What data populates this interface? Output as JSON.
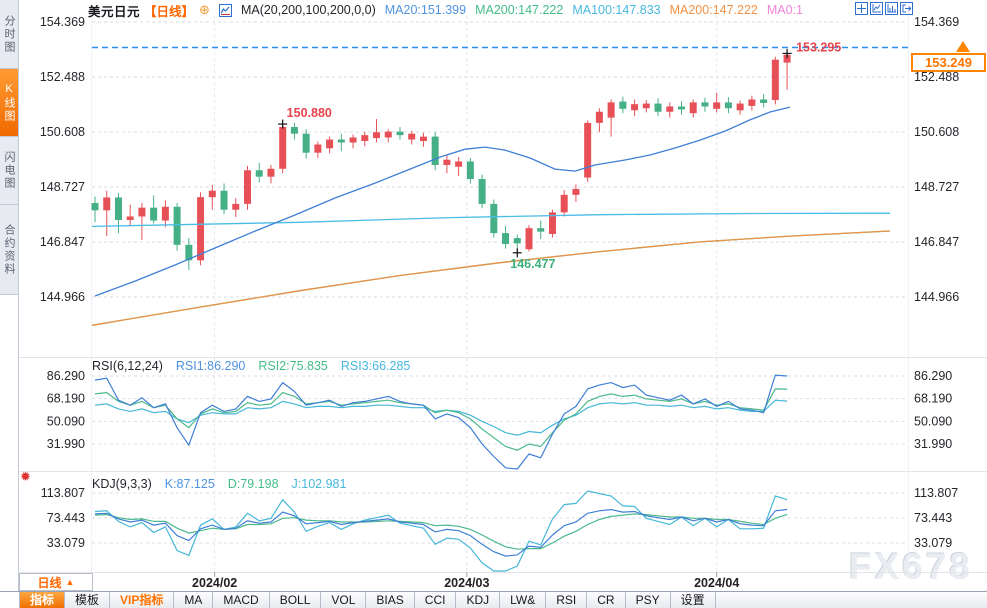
{
  "watermark": "FX678",
  "sidebar": {
    "tabs": [
      {
        "label": "分时图",
        "active": false
      },
      {
        "label": "K线图",
        "active": true
      },
      {
        "label": "闪电图",
        "active": false
      },
      {
        "label": "合约资料",
        "active": false
      }
    ]
  },
  "header": {
    "symbol": "美元日元",
    "period_tag": "【日线】",
    "add_icon": "⊕",
    "ma_formula": "MA(20,200,100,200,0,0)",
    "ma_values": [
      {
        "label": "MA20:151.399",
        "color": "#4f93e0"
      },
      {
        "label": "MA200:147.222",
        "color": "#43bd88"
      },
      {
        "label": "MA100:147.833",
        "color": "#47b8e0"
      },
      {
        "label": "MA200:147.222",
        "color": "#f09145"
      },
      {
        "label": "MA0:1",
        "color": "#ee86d8"
      }
    ]
  },
  "price_tag": {
    "value": "153.249",
    "color": "#ff8400"
  },
  "indicators": {
    "rsi": {
      "title": "RSI(6,12,24)",
      "items": [
        {
          "label": "RSI1:86.290",
          "color": "#4f93e0"
        },
        {
          "label": "RSI2:75.835",
          "color": "#43bd88"
        },
        {
          "label": "RSI3:66.285",
          "color": "#47b8e0"
        }
      ]
    },
    "kdj": {
      "title": "KDJ(9,3,3)",
      "items": [
        {
          "label": "K:87.125",
          "color": "#4f93e0"
        },
        {
          "label": "D:79.198",
          "color": "#43bd88"
        },
        {
          "label": "J:102.981",
          "color": "#47b8e0"
        }
      ]
    }
  },
  "period_selector": {
    "label": "日线",
    "arrow": "▲"
  },
  "toolbar": {
    "items": [
      {
        "label": "指标",
        "active": true
      },
      {
        "label": "模板"
      },
      {
        "label": "VIP指标",
        "vip": true
      },
      {
        "label": "MA"
      },
      {
        "label": "MACD"
      },
      {
        "label": "BOLL"
      },
      {
        "label": "VOL"
      },
      {
        "label": "BIAS"
      },
      {
        "label": "CCI"
      },
      {
        "label": "KDJ"
      },
      {
        "label": "LW&"
      },
      {
        "label": "RSI"
      },
      {
        "label": "CR"
      },
      {
        "label": "PSY"
      },
      {
        "label": "设置"
      }
    ]
  },
  "chart_data": {
    "type": "candlestick",
    "title": "美元日元 日线",
    "main": {
      "y_ticks": [
        154.369,
        152.488,
        150.608,
        148.727,
        146.847,
        144.966
      ],
      "x_ticks": [
        {
          "label": "2024/02",
          "i": 10.2
        },
        {
          "label": "2024/03",
          "i": 31.7
        },
        {
          "label": "2024/04",
          "i": 53.0
        }
      ],
      "up_color": "#e85058",
      "down_color": "#45b086",
      "last_price": 153.249,
      "price_line_color": "#2b8df0",
      "candles_ohlc": [
        [
          148.18,
          148.4,
          147.52,
          147.93
        ],
        [
          147.93,
          148.6,
          147.05,
          148.37
        ],
        [
          148.37,
          148.53,
          147.15,
          147.6
        ],
        [
          147.6,
          148.12,
          147.42,
          147.72
        ],
        [
          147.72,
          148.18,
          146.92,
          148.02
        ],
        [
          148.02,
          148.44,
          147.48,
          147.58
        ],
        [
          147.58,
          148.27,
          147.35,
          148.05
        ],
        [
          148.05,
          148.18,
          146.55,
          146.75
        ],
        [
          146.75,
          146.98,
          145.89,
          146.22
        ],
        [
          146.22,
          148.55,
          146.05,
          148.38
        ],
        [
          148.38,
          148.8,
          147.95,
          148.6
        ],
        [
          148.6,
          148.85,
          147.8,
          147.95
        ],
        [
          147.95,
          148.35,
          147.7,
          148.15
        ],
        [
          148.15,
          149.45,
          147.95,
          149.3
        ],
        [
          149.3,
          149.55,
          148.88,
          149.08
        ],
        [
          149.08,
          149.48,
          148.85,
          149.35
        ],
        [
          149.35,
          150.88,
          149.2,
          150.78
        ],
        [
          150.78,
          150.92,
          150.35,
          150.55
        ],
        [
          150.55,
          150.7,
          149.7,
          149.9
        ],
        [
          149.9,
          150.28,
          149.72,
          150.18
        ],
        [
          150.05,
          150.45,
          149.88,
          150.35
        ],
        [
          150.35,
          150.55,
          149.95,
          150.25
        ],
        [
          150.25,
          150.52,
          150.05,
          150.42
        ],
        [
          150.3,
          150.62,
          150.12,
          150.5
        ],
        [
          150.4,
          151.05,
          150.25,
          150.6
        ],
        [
          150.42,
          150.7,
          150.25,
          150.62
        ],
        [
          150.62,
          150.78,
          150.35,
          150.5
        ],
        [
          150.35,
          150.65,
          150.18,
          150.55
        ],
        [
          150.3,
          150.58,
          150.1,
          150.45
        ],
        [
          150.45,
          150.6,
          149.3,
          149.48
        ],
        [
          149.48,
          149.82,
          149.2,
          149.66
        ],
        [
          149.42,
          149.75,
          149.1,
          149.6
        ],
        [
          149.6,
          149.72,
          148.85,
          149.0
        ],
        [
          149.0,
          149.15,
          148.0,
          148.15
        ],
        [
          148.15,
          148.3,
          147.0,
          147.15
        ],
        [
          147.15,
          147.4,
          146.62,
          146.78
        ],
        [
          146.98,
          147.1,
          146.477,
          146.8
        ],
        [
          146.6,
          147.42,
          146.52,
          147.32
        ],
        [
          147.32,
          147.58,
          146.95,
          147.2
        ],
        [
          147.12,
          147.95,
          147.0,
          147.86
        ],
        [
          147.86,
          148.62,
          147.72,
          148.46
        ],
        [
          148.46,
          148.82,
          148.22,
          148.66
        ],
        [
          149.05,
          151.0,
          148.9,
          150.92
        ],
        [
          150.92,
          151.42,
          150.6,
          151.3
        ],
        [
          151.1,
          151.72,
          150.45,
          151.62
        ],
        [
          151.65,
          151.82,
          151.25,
          151.4
        ],
        [
          151.35,
          151.72,
          151.15,
          151.56
        ],
        [
          151.42,
          151.7,
          151.28,
          151.58
        ],
        [
          151.58,
          151.76,
          151.15,
          151.3
        ],
        [
          151.3,
          151.62,
          151.1,
          151.48
        ],
        [
          151.48,
          151.66,
          151.2,
          151.38
        ],
        [
          151.25,
          151.72,
          151.1,
          151.62
        ],
        [
          151.62,
          151.78,
          151.3,
          151.48
        ],
        [
          151.4,
          151.95,
          151.28,
          151.62
        ],
        [
          151.62,
          151.8,
          151.25,
          151.42
        ],
        [
          151.35,
          151.68,
          151.2,
          151.58
        ],
        [
          151.5,
          151.85,
          151.35,
          151.72
        ],
        [
          151.72,
          151.9,
          151.45,
          151.6
        ],
        [
          151.7,
          153.18,
          151.55,
          153.08
        ],
        [
          152.98,
          153.295,
          152.05,
          153.249
        ]
      ],
      "ma_lines": [
        {
          "name": "MA200-green",
          "color": "#43bd88",
          "points": [
            [
              92,
              144.0
            ],
            [
              200,
              144.62
            ],
            [
              300,
              145.18
            ],
            [
              400,
              145.7
            ],
            [
              500,
              146.14
            ],
            [
              600,
              146.52
            ],
            [
              700,
              146.85
            ],
            [
              790,
              147.05
            ],
            [
              890,
              147.222
            ]
          ]
        },
        {
          "name": "MA200-orange",
          "color": "#f09145",
          "points": [
            [
              92,
              144.0
            ],
            [
              200,
              144.62
            ],
            [
              300,
              145.18
            ],
            [
              400,
              145.7
            ],
            [
              500,
              146.14
            ],
            [
              600,
              146.52
            ],
            [
              700,
              146.85
            ],
            [
              790,
              147.05
            ],
            [
              890,
              147.222
            ]
          ]
        },
        {
          "name": "MA100",
          "color": "#49bde4",
          "points": [
            [
              92,
              147.38
            ],
            [
              300,
              147.52
            ],
            [
              450,
              147.68
            ],
            [
              600,
              147.78
            ],
            [
              750,
              147.82
            ],
            [
              890,
              147.833
            ]
          ]
        },
        {
          "name": "MA20",
          "color": "#3f7fd6",
          "points": [
            [
              95,
              145.0
            ],
            [
              135,
              145.51
            ],
            [
              175,
              146.06
            ],
            [
              215,
              146.64
            ],
            [
              255,
              147.22
            ],
            [
              295,
              147.77
            ],
            [
              335,
              148.35
            ],
            [
              375,
              148.86
            ],
            [
              410,
              149.34
            ],
            [
              440,
              149.75
            ],
            [
              465,
              150.02
            ],
            [
              485,
              150.09
            ],
            [
              505,
              149.99
            ],
            [
              530,
              149.72
            ],
            [
              555,
              149.34
            ],
            [
              575,
              149.27
            ],
            [
              595,
              149.48
            ],
            [
              625,
              149.65
            ],
            [
              650,
              149.82
            ],
            [
              675,
              150.06
            ],
            [
              700,
              150.33
            ],
            [
              725,
              150.64
            ],
            [
              750,
              151.02
            ],
            [
              770,
              151.29
            ],
            [
              790,
              151.46
            ]
          ]
        }
      ],
      "annotations": [
        {
          "text": "150.880",
          "candle": 16,
          "at": "high",
          "color": "#e8434b"
        },
        {
          "text": "146.477",
          "candle": 36,
          "at": "low",
          "color": "#3fae7e"
        },
        {
          "text": "153.295",
          "candle": 59,
          "at": "high",
          "color": "#e8434b"
        }
      ]
    },
    "rsi": {
      "y_ticks": [
        86.29,
        68.19,
        50.09,
        31.99
      ],
      "series": [
        {
          "name": "RSI1",
          "color": "#3f7fd6",
          "values": [
            83,
            84.5,
            67,
            63,
            69,
            61,
            64,
            45,
            31,
            57,
            63,
            58,
            60,
            70,
            66,
            68,
            81,
            74,
            63,
            65,
            67,
            62,
            65,
            66,
            68,
            70,
            66,
            64,
            63,
            52,
            56,
            53,
            45,
            32,
            22,
            13,
            10,
            24,
            21,
            40,
            56,
            62,
            76,
            79,
            81,
            77,
            79,
            71,
            69,
            67,
            71,
            64,
            68,
            62,
            66,
            60,
            59,
            57,
            87,
            86.29
          ]
        },
        {
          "name": "RSI2",
          "color": "#4cb98a",
          "values": [
            72,
            73,
            66,
            63,
            66,
            61,
            63,
            52,
            45,
            56,
            60,
            57,
            58,
            65,
            63,
            64,
            73,
            70,
            64,
            65,
            66,
            63,
            64,
            65,
            66,
            67,
            65,
            64,
            63,
            57,
            59,
            57,
            52,
            44,
            37,
            30,
            27,
            32,
            30,
            41,
            51,
            56,
            66,
            70,
            72,
            70,
            71,
            68,
            67,
            66,
            68,
            64,
            66,
            63,
            64,
            61,
            60,
            59,
            76,
            75.835
          ]
        },
        {
          "name": "RSI3",
          "color": "#46b7d8",
          "values": [
            63,
            64,
            60,
            58,
            60,
            57,
            58,
            52,
            49,
            55,
            57,
            56,
            56,
            61,
            60,
            61,
            66,
            64,
            61,
            62,
            62,
            61,
            62,
            62,
            63,
            63,
            62,
            61,
            61,
            58,
            59,
            58,
            55,
            50,
            46,
            41,
            39,
            42,
            41,
            47,
            52,
            55,
            61,
            64,
            65,
            64,
            65,
            63,
            63,
            62,
            63,
            61,
            62,
            60,
            61,
            59,
            58,
            58,
            67,
            66.285
          ]
        }
      ]
    },
    "kdj": {
      "y_ticks": [
        113.807,
        73.443,
        33.079
      ],
      "series": [
        {
          "name": "K",
          "color": "#3f7fd6",
          "values": [
            80,
            81,
            72,
            67,
            70,
            62,
            65,
            45,
            37,
            56,
            62,
            55,
            57,
            69,
            65,
            67,
            83,
            77,
            64,
            66,
            68,
            63,
            66,
            68,
            70,
            72,
            67,
            65,
            63,
            51,
            55,
            53,
            45,
            31,
            19,
            12,
            14,
            28,
            26,
            46,
            61,
            67,
            81,
            85,
            87,
            83,
            84,
            77,
            74,
            71,
            75,
            69,
            73,
            67,
            71,
            64,
            62,
            61,
            85,
            87.125
          ]
        },
        {
          "name": "D",
          "color": "#4cb98a",
          "values": [
            78,
            79,
            74,
            71,
            72,
            68,
            68,
            57,
            49,
            53,
            57,
            55,
            56,
            63,
            63,
            64,
            73,
            74,
            70,
            69,
            69,
            67,
            67,
            67,
            68,
            69,
            68,
            67,
            66,
            61,
            62,
            60,
            55,
            46,
            36,
            27,
            23,
            24,
            24,
            33,
            44,
            52,
            63,
            71,
            76,
            78,
            80,
            79,
            77,
            75,
            75,
            73,
            73,
            71,
            71,
            68,
            65,
            63,
            73,
            79.198
          ]
        },
        {
          "name": "J",
          "color": "#46b7d8",
          "values": [
            84,
            85,
            68,
            59,
            66,
            50,
            59,
            21,
            13,
            62,
            72,
            55,
            59,
            81,
            69,
            73,
            103,
            83,
            52,
            60,
            66,
            55,
            64,
            70,
            74,
            78,
            65,
            61,
            57,
            31,
            41,
            39,
            25,
            1,
            -15,
            -18,
            -4,
            36,
            30,
            72,
            95,
            97,
            117,
            113,
            109,
            93,
            92,
            73,
            68,
            63,
            75,
            61,
            73,
            59,
            71,
            56,
            56,
            57,
            109,
            102.981
          ]
        }
      ]
    }
  }
}
